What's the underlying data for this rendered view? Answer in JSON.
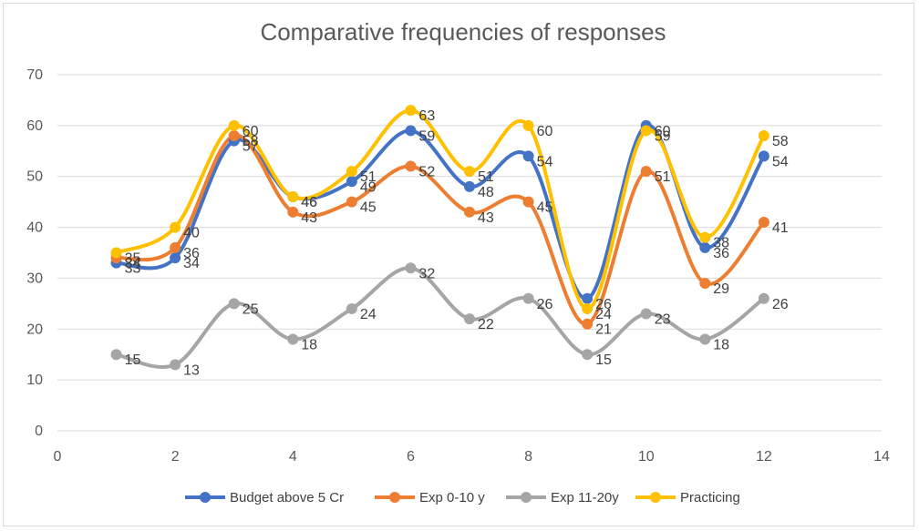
{
  "chart_data": {
    "type": "line",
    "title": "Comparative frequencies of responses",
    "xlabel": "",
    "ylabel": "",
    "xlim": [
      0,
      14
    ],
    "ylim": [
      0,
      70
    ],
    "x_ticks": [
      0,
      2,
      4,
      6,
      8,
      10,
      12,
      14
    ],
    "y_ticks": [
      0,
      10,
      20,
      30,
      40,
      50,
      60,
      70
    ],
    "grid": "horizontal",
    "legend_position": "bottom",
    "smooth": true,
    "x": [
      1,
      2,
      3,
      4,
      5,
      6,
      7,
      8,
      9,
      10,
      11,
      12
    ],
    "series": [
      {
        "name": "Budget above 5 Cr",
        "color": "#4472C4",
        "values": [
          33,
          34,
          57,
          46,
          49,
          59,
          48,
          54,
          26,
          60,
          36,
          54
        ]
      },
      {
        "name": "Exp 0-10 y",
        "color": "#ED7D31",
        "values": [
          34,
          36,
          58,
          43,
          45,
          52,
          43,
          45,
          21,
          51,
          29,
          41
        ]
      },
      {
        "name": "Exp 11-20y",
        "color": "#A5A5A5",
        "values": [
          15,
          13,
          25,
          18,
          24,
          32,
          22,
          26,
          15,
          23,
          18,
          26
        ]
      },
      {
        "name": "Practicing",
        "color": "#FFC000",
        "values": [
          35,
          40,
          60,
          46,
          51,
          63,
          51,
          60,
          24,
          59,
          38,
          58
        ]
      }
    ]
  }
}
